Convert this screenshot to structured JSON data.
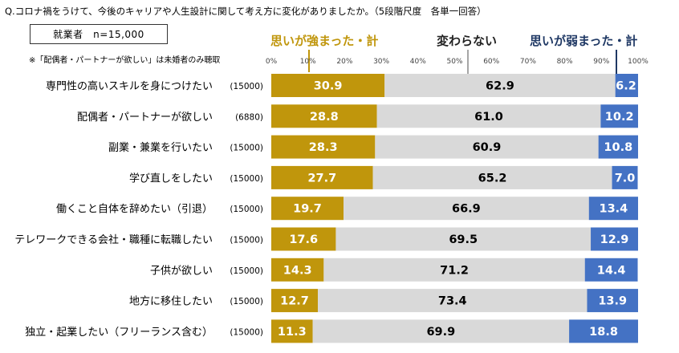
{
  "header": {
    "question": "Q.コロナ禍をうけて、今後のキャリアや人生設計に関して考え方に変化がありましたか。（5段階尺度　各単一回答）",
    "sample": "就業者　n=15,000",
    "note": "※「配偶者・パートナーが欲しい」は未婚者のみ聴取"
  },
  "colors": {
    "strong": "#c0960c",
    "nochange": "#d9d9d9",
    "weak": "#4472c4"
  },
  "chart_data": {
    "type": "bar",
    "orientation": "horizontal",
    "stacked": true,
    "xlim": [
      0,
      100
    ],
    "x_ticks": [
      "0%",
      "10%",
      "20%",
      "30%",
      "40%",
      "50%",
      "60%",
      "70%",
      "80%",
      "90%",
      "100%"
    ],
    "categories": [
      "専門性の高いスキルを身につけたい",
      "配偶者・パートナーが欲しい",
      "副業・兼業を行いたい",
      "学び直しをしたい",
      "働くこと自体を辞めたい（引退）",
      "テレワークできる会社・職種に転職したい",
      "子供が欲しい",
      "地方に移住したい",
      "独立・起業したい（フリーランス含む）"
    ],
    "n": [
      "(15000)",
      "(6880)",
      "(15000)",
      "(15000)",
      "(15000)",
      "(15000)",
      "(15000)",
      "(15000)",
      "(15000)"
    ],
    "series": [
      {
        "name": "思いが強まった・計",
        "values": [
          30.9,
          28.8,
          28.3,
          27.7,
          19.7,
          17.6,
          14.3,
          12.7,
          11.3
        ]
      },
      {
        "name": "変わらない",
        "values": [
          62.9,
          61.0,
          60.9,
          65.2,
          66.9,
          69.5,
          71.2,
          73.4,
          69.9
        ]
      },
      {
        "name": "思いが弱まった・計",
        "values": [
          6.2,
          10.2,
          10.8,
          7.0,
          13.4,
          12.9,
          14.4,
          13.9,
          18.8
        ]
      }
    ]
  }
}
